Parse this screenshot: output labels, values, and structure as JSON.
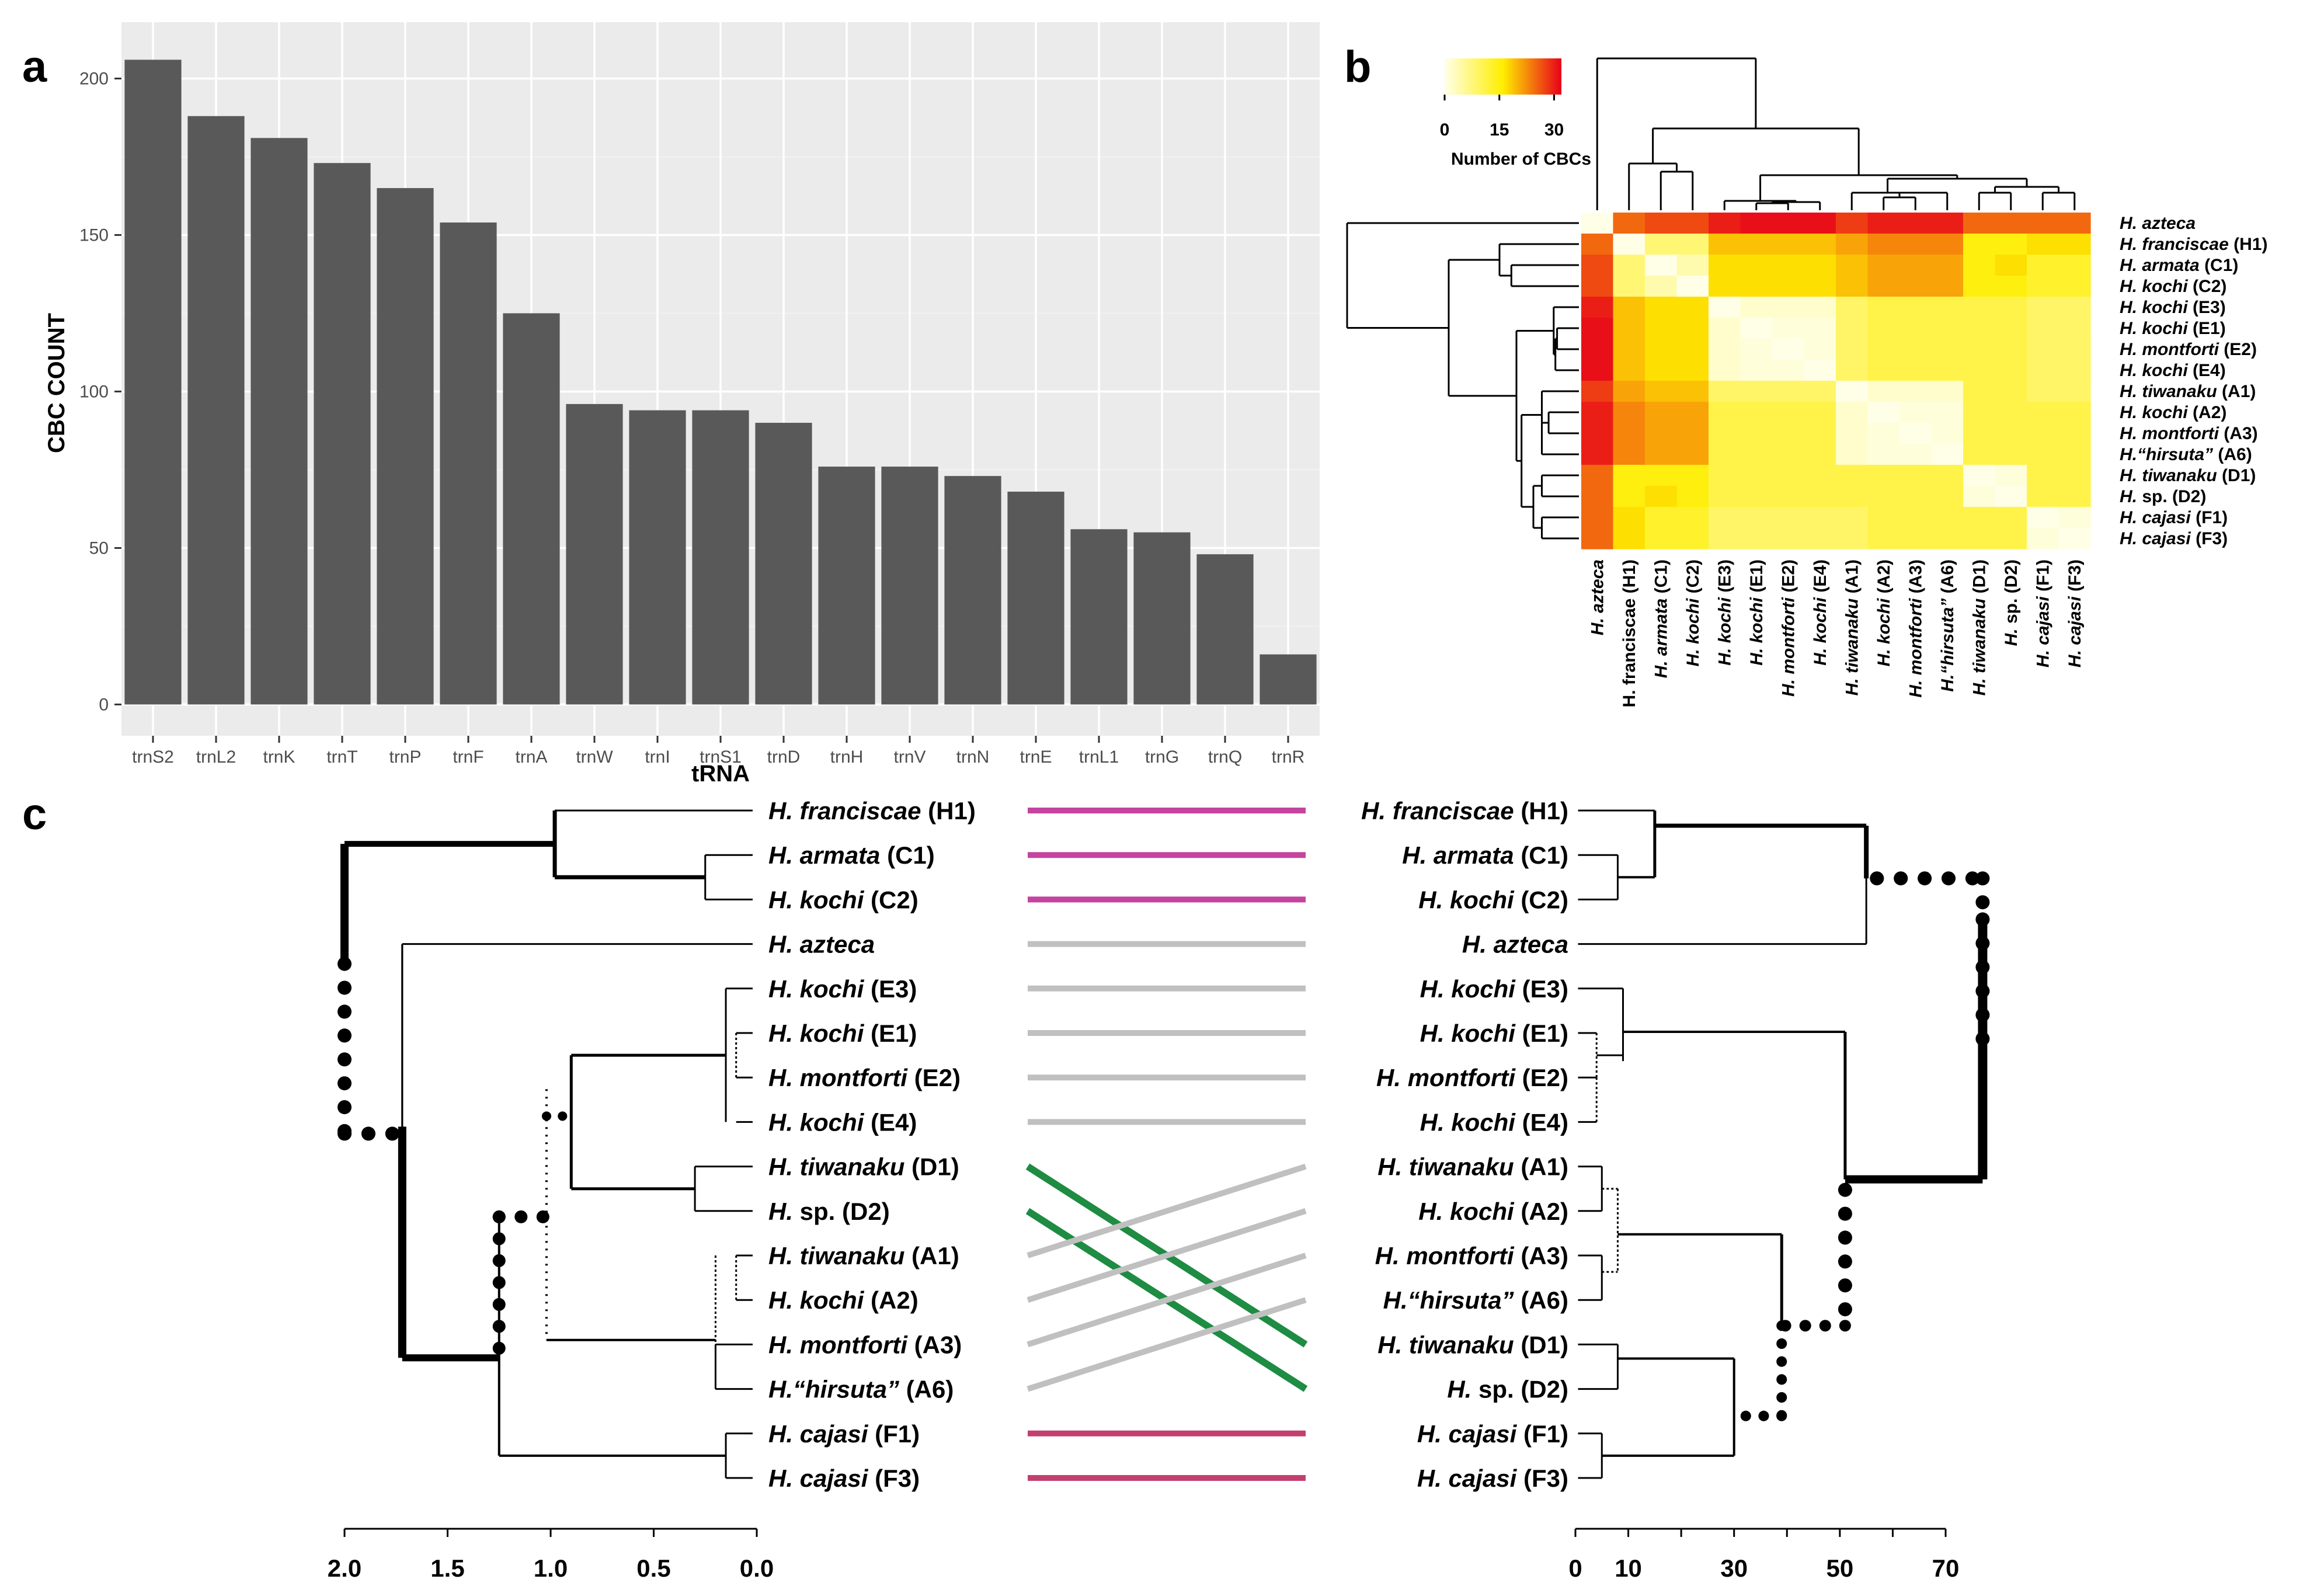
{
  "colors": {
    "bar": "#595959",
    "panel_bg": "#ebebeb",
    "grid_major": "#ffffff",
    "grid_minor": "#f2f2f2",
    "heat_low": "#ffffe8",
    "heat_mid": "#ffee00",
    "heat_high": "#e8001a",
    "link_magenta": "#c4449f",
    "link_gray": "#c0c0c0",
    "link_green": "#1e8c43",
    "link_rose": "#c2406f"
  },
  "panels": {
    "a": "a",
    "b": "b",
    "c": "c"
  },
  "chart_data": [
    {
      "id": "a",
      "type": "bar",
      "title": "",
      "xlabel": "tRNA",
      "ylabel": "CBC COUNT",
      "categories": [
        "trnS2",
        "trnL2",
        "trnK",
        "trnT",
        "trnP",
        "trnF",
        "trnA",
        "trnW",
        "trnI",
        "trnS1",
        "trnD",
        "trnH",
        "trnV",
        "trnN",
        "trnE",
        "trnL1",
        "trnG",
        "trnQ",
        "trnR"
      ],
      "values": [
        206,
        188,
        181,
        173,
        165,
        154,
        125,
        96,
        94,
        94,
        90,
        76,
        76,
        73,
        68,
        56,
        55,
        48,
        16
      ],
      "yticks": [
        0,
        50,
        100,
        150,
        200
      ],
      "ylim": [
        -10,
        218
      ]
    },
    {
      "id": "b",
      "type": "heatmap",
      "colorbar": {
        "title": "Number of CBCs",
        "ticks": [
          0,
          15,
          30
        ],
        "range": [
          0,
          32
        ]
      },
      "row_labels": [
        {
          "g": "H. azteca",
          "s": ""
        },
        {
          "g": "H. franciscae",
          "s": " (H1)"
        },
        {
          "g": "H. armata",
          "s": " (C1)"
        },
        {
          "g": "H. kochi",
          "s": " (C2)"
        },
        {
          "g": "H. kochi",
          "s": " (E3)"
        },
        {
          "g": "H. kochi",
          "s": " (E1)"
        },
        {
          "g": "H. montforti",
          "s": " (E2)"
        },
        {
          "g": "H. kochi",
          "s": " (E4)"
        },
        {
          "g": "H. tiwanaku",
          "s": " (A1)"
        },
        {
          "g": "H. kochi",
          "s": " (A2)"
        },
        {
          "g": "H. montforti",
          "s": " (A3)"
        },
        {
          "g": "H.“hirsuta”",
          "s": " (A6)"
        },
        {
          "g": "H. tiwanaku",
          "s": " (D1)"
        },
        {
          "g": "H.",
          "s": " sp. (D2)"
        },
        {
          "g": "H. cajasi",
          "s": " (F1)"
        },
        {
          "g": "H. cajasi",
          "s": " (F3)"
        }
      ],
      "col_labels": [
        {
          "g": "H. azteca",
          "s": "",
          "gi": true
        },
        {
          "g": "H. franciscae (H1)",
          "s": "",
          "gi": false
        },
        {
          "g": "H. armata",
          "s": " (C1)",
          "gi": true
        },
        {
          "g": "H. kochi",
          "s": " (C2)",
          "gi": true
        },
        {
          "g": "H. kochi",
          "s": " (E3)",
          "gi": true
        },
        {
          "g": "H. kochi",
          "s": " (E1)",
          "gi": true
        },
        {
          "g": "H. montforti",
          "s": " (E2)",
          "gi": true
        },
        {
          "g": "H. kochi",
          "s": " (E4)",
          "gi": true
        },
        {
          "g": "H. tiwanaku",
          "s": " (A1)",
          "gi": true
        },
        {
          "g": "H. kochi",
          "s": " (A2)",
          "gi": true
        },
        {
          "g": "H. montforti",
          "s": " (A3)",
          "gi": true
        },
        {
          "g": "H.“hirsuta”",
          "s": " (A6)",
          "gi": true
        },
        {
          "g": "H. tiwanaku",
          "s": " (D1)",
          "gi": true
        },
        {
          "g": "H.",
          "s": " sp. (D2)",
          "gi": true
        },
        {
          "g": "H. cajasi",
          "s": " (F1)",
          "gi": true
        },
        {
          "g": "H. cajasi",
          "s": " (F3)",
          "gi": true
        }
      ],
      "matrix": [
        [
          0,
          25,
          27,
          27,
          30,
          31,
          31,
          31,
          28,
          30,
          30,
          30,
          25,
          25,
          25,
          25
        ],
        [
          25,
          0,
          8,
          8,
          19,
          19,
          19,
          19,
          21,
          23,
          23,
          23,
          15,
          15,
          17,
          17
        ],
        [
          27,
          8,
          0,
          4,
          17,
          17,
          17,
          17,
          19,
          21,
          21,
          21,
          15,
          17,
          13,
          13
        ],
        [
          27,
          8,
          4,
          0,
          17,
          17,
          17,
          17,
          19,
          21,
          21,
          21,
          15,
          15,
          13,
          13
        ],
        [
          30,
          19,
          17,
          17,
          0,
          2,
          2,
          2,
          9,
          11,
          11,
          11,
          11,
          11,
          9,
          9
        ],
        [
          31,
          19,
          17,
          17,
          2,
          0,
          1,
          1,
          9,
          11,
          11,
          11,
          11,
          11,
          9,
          9
        ],
        [
          31,
          19,
          17,
          17,
          2,
          1,
          0,
          1,
          9,
          11,
          11,
          11,
          11,
          11,
          9,
          9
        ],
        [
          31,
          19,
          17,
          17,
          2,
          1,
          1,
          0,
          9,
          11,
          11,
          11,
          11,
          11,
          9,
          9
        ],
        [
          28,
          21,
          19,
          19,
          9,
          9,
          9,
          9,
          0,
          2,
          2,
          2,
          11,
          11,
          9,
          9
        ],
        [
          30,
          23,
          21,
          21,
          11,
          11,
          11,
          11,
          2,
          0,
          1,
          1,
          11,
          11,
          11,
          11
        ],
        [
          30,
          23,
          21,
          21,
          11,
          11,
          11,
          11,
          2,
          1,
          0,
          1,
          11,
          11,
          11,
          11
        ],
        [
          30,
          23,
          21,
          21,
          11,
          11,
          11,
          11,
          2,
          1,
          1,
          0,
          11,
          11,
          11,
          11
        ],
        [
          25,
          15,
          15,
          15,
          11,
          11,
          11,
          11,
          11,
          11,
          11,
          11,
          0,
          1,
          11,
          11
        ],
        [
          25,
          15,
          17,
          15,
          11,
          11,
          11,
          11,
          11,
          11,
          11,
          11,
          1,
          0,
          11,
          11
        ],
        [
          25,
          17,
          13,
          13,
          9,
          9,
          9,
          9,
          9,
          11,
          11,
          11,
          11,
          11,
          0,
          1
        ],
        [
          25,
          17,
          13,
          13,
          9,
          9,
          9,
          9,
          9,
          11,
          11,
          11,
          11,
          11,
          1,
          0
        ]
      ],
      "dendrogram_merges": [
        [
          5,
          6
        ],
        [
          7,
          -1
        ],
        [
          4,
          -2
        ],
        [
          9,
          10
        ],
        [
          11,
          -4
        ],
        [
          8,
          -5
        ],
        [
          12,
          13
        ],
        [
          14,
          15
        ],
        [
          -7,
          -8
        ],
        [
          -6,
          -9
        ],
        [
          -3,
          -10
        ],
        [
          2,
          3
        ],
        [
          1,
          -12
        ],
        [
          -11,
          -13
        ],
        [
          0,
          -14
        ]
      ]
    },
    {
      "id": "c",
      "type": "tanglegram",
      "left_labels": [
        {
          "g": "H. franciscae",
          "s": " (H1)"
        },
        {
          "g": "H. armata",
          "s": " (C1)"
        },
        {
          "g": "H. kochi",
          "s": " (C2)"
        },
        {
          "g": "H. azteca",
          "s": ""
        },
        {
          "g": "H. kochi",
          "s": " (E3)"
        },
        {
          "g": "H. kochi",
          "s": " (E1)"
        },
        {
          "g": "H. montforti",
          "s": " (E2)"
        },
        {
          "g": "H. kochi",
          "s": " (E4)"
        },
        {
          "g": "H. tiwanaku",
          "s": " (D1)"
        },
        {
          "g": "H.",
          "s": " sp. (D2)"
        },
        {
          "g": "H. tiwanaku",
          "s": " (A1)"
        },
        {
          "g": "H. kochi",
          "s": " (A2)"
        },
        {
          "g": "H. montforti",
          "s": " (A3)"
        },
        {
          "g": "H.“hirsuta”",
          "s": " (A6)"
        },
        {
          "g": "H. cajasi",
          "s": " (F1)"
        },
        {
          "g": "H. cajasi",
          "s": " (F3)"
        }
      ],
      "right_labels": [
        {
          "g": "H. franciscae",
          "s": " (H1)"
        },
        {
          "g": "H. armata",
          "s": " (C1)"
        },
        {
          "g": "H. kochi",
          "s": " (C2)"
        },
        {
          "g": "H. azteca",
          "s": ""
        },
        {
          "g": "H. kochi",
          "s": " (E3)"
        },
        {
          "g": "H. kochi",
          "s": " (E1)"
        },
        {
          "g": "H. montforti",
          "s": " (E2)"
        },
        {
          "g": "H. kochi",
          "s": " (E4)"
        },
        {
          "g": "H. tiwanaku",
          "s": " (A1)"
        },
        {
          "g": "H. kochi",
          "s": " (A2)"
        },
        {
          "g": "H. montforti",
          "s": " (A3)"
        },
        {
          "g": "H.“hirsuta”",
          "s": " (A6)"
        },
        {
          "g": "H. tiwanaku",
          "s": " (D1)"
        },
        {
          "g": "H.",
          "s": " sp. (D2)"
        },
        {
          "g": "H. cajasi",
          "s": " (F1)"
        },
        {
          "g": "H. cajasi",
          "s": " (F3)"
        }
      ],
      "links": [
        {
          "from": 0,
          "to": 0,
          "color": "link_magenta"
        },
        {
          "from": 1,
          "to": 1,
          "color": "link_magenta"
        },
        {
          "from": 2,
          "to": 2,
          "color": "link_magenta"
        },
        {
          "from": 3,
          "to": 3,
          "color": "link_gray"
        },
        {
          "from": 4,
          "to": 4,
          "color": "link_gray"
        },
        {
          "from": 5,
          "to": 5,
          "color": "link_gray"
        },
        {
          "from": 6,
          "to": 6,
          "color": "link_gray"
        },
        {
          "from": 7,
          "to": 7,
          "color": "link_gray"
        },
        {
          "from": 8,
          "to": 12,
          "color": "link_green"
        },
        {
          "from": 9,
          "to": 13,
          "color": "link_green"
        },
        {
          "from": 10,
          "to": 8,
          "color": "link_gray"
        },
        {
          "from": 11,
          "to": 9,
          "color": "link_gray"
        },
        {
          "from": 12,
          "to": 10,
          "color": "link_gray"
        },
        {
          "from": 13,
          "to": 11,
          "color": "link_gray"
        },
        {
          "from": 14,
          "to": 14,
          "color": "link_rose"
        },
        {
          "from": 15,
          "to": 15,
          "color": "link_rose"
        }
      ],
      "left_axis": {
        "ticks": [
          2.0,
          1.5,
          1.0,
          0.5,
          0.0
        ],
        "labels": [
          "2.0",
          "1.5",
          "1.0",
          "0.5",
          "0.0"
        ],
        "range": [
          2.0,
          0.0
        ]
      },
      "right_axis": {
        "ticks": [
          0,
          10,
          30,
          50,
          70
        ],
        "labels": [
          "0",
          "10",
          "30",
          "50",
          "70"
        ],
        "minor_ticks": [
          20,
          40,
          60
        ],
        "range": [
          0,
          70
        ]
      }
    }
  ]
}
